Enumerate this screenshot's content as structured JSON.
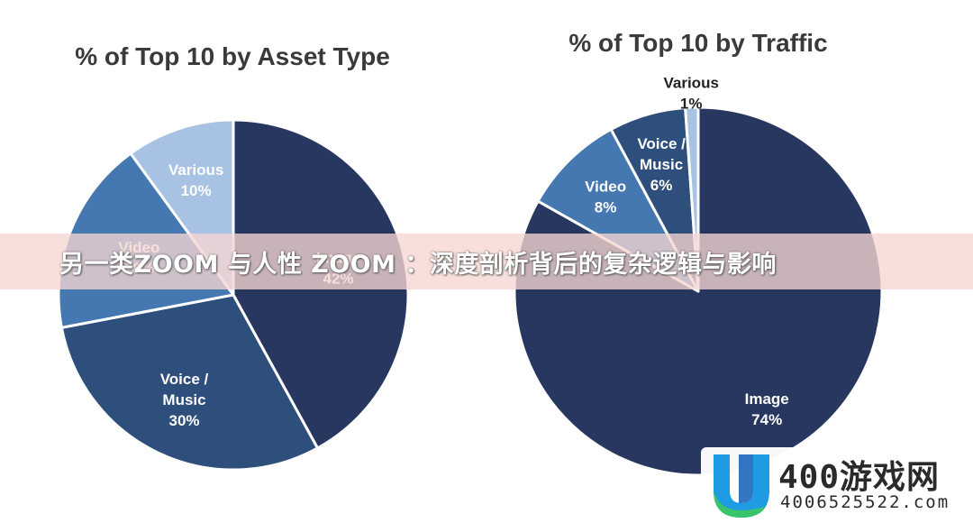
{
  "chart_data": [
    {
      "type": "pie",
      "title": "% of Top 10 by Asset Type",
      "slices": [
        {
          "label": "Image",
          "value": 42,
          "display": "42%",
          "color": "#283760"
        },
        {
          "label": "Voice / Music",
          "value": 30,
          "display": "30%",
          "color": "#2e4f7c"
        },
        {
          "label": "Video",
          "value": 18,
          "display": "18%",
          "color": "#4577b0"
        },
        {
          "label": "Various",
          "value": 10,
          "display": "10%",
          "color": "#a7c2e2"
        }
      ]
    },
    {
      "type": "pie",
      "title": "% of Top 10 by Traffic",
      "slices": [
        {
          "label": "Image",
          "value": 74,
          "display": "74%",
          "color": "#283760"
        },
        {
          "label": "Video",
          "value": 8,
          "display": "8%",
          "color": "#4577b0"
        },
        {
          "label": "Voice / Music",
          "value": 6,
          "display": "6%",
          "color": "#2e4f7c"
        },
        {
          "label": "Various",
          "value": 1,
          "display": "1%",
          "color": "#a7c2e2"
        }
      ]
    }
  ],
  "banner": {
    "text": "另一类ZOOM 与人性 ZOOM ：深度剖析背后的复杂逻辑与影响"
  },
  "watermark": {
    "brand": "400游戏网",
    "phone": "4006525522.com",
    "logo_icon": "u-logo-icon"
  }
}
